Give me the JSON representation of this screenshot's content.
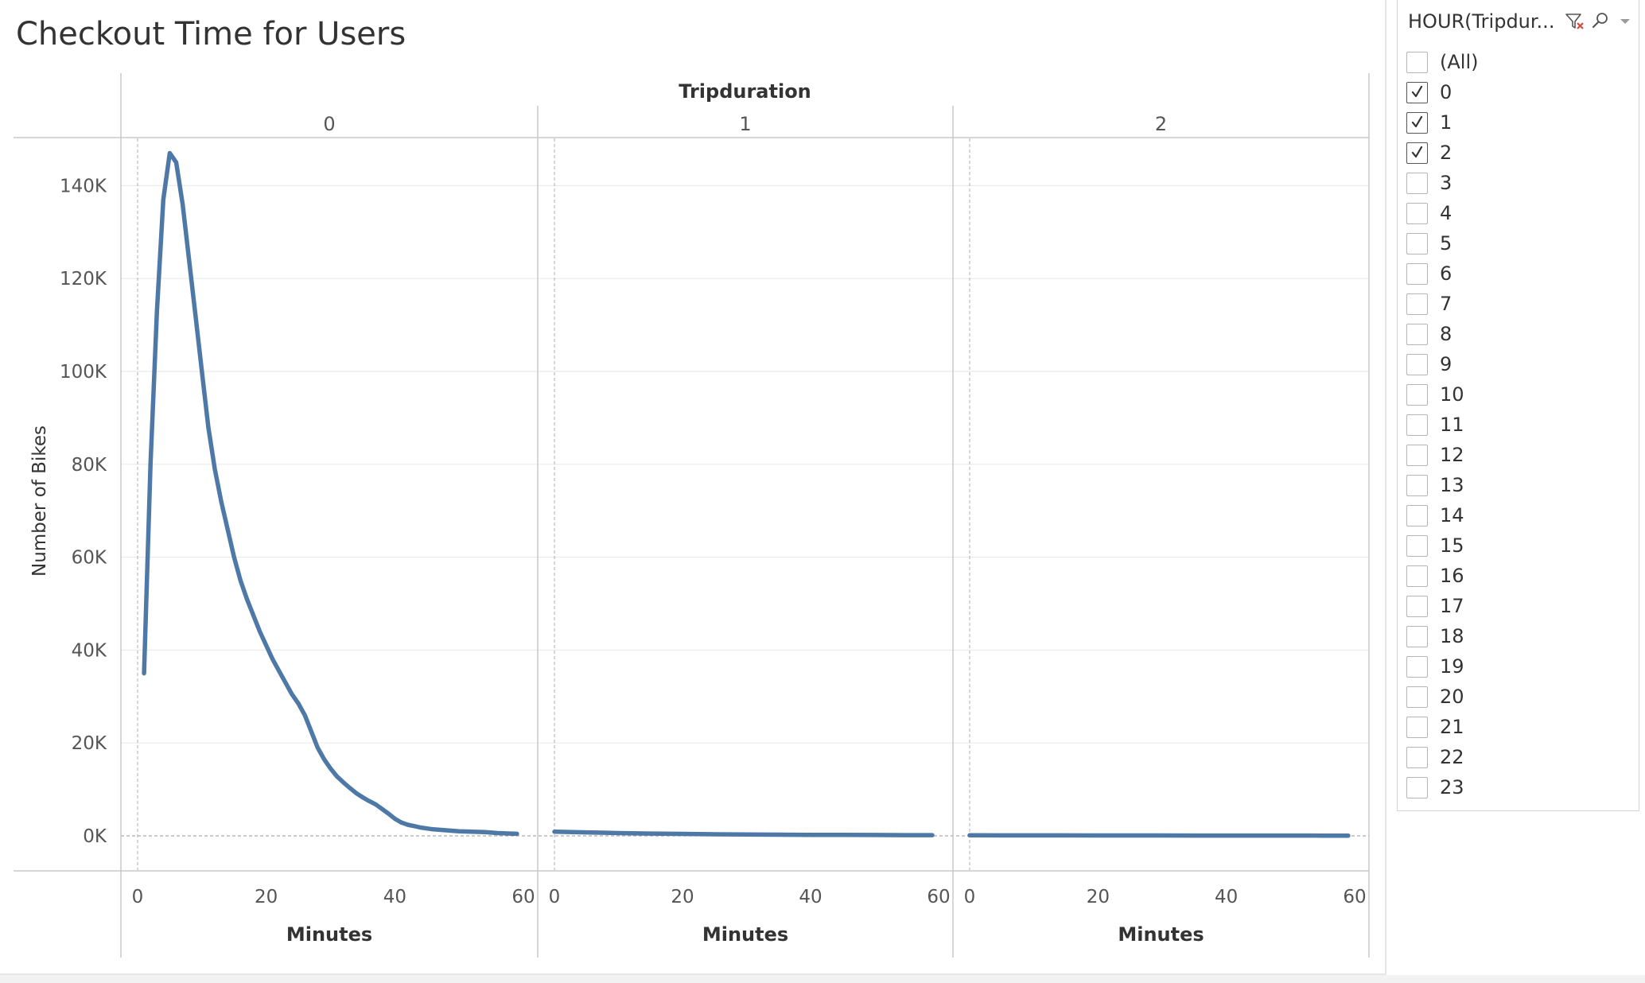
{
  "title": "Checkout Time for Users",
  "filter": {
    "title": "HOUR(Tripdur...",
    "items": [
      {
        "label": "(All)",
        "checked": false
      },
      {
        "label": "0",
        "checked": true
      },
      {
        "label": "1",
        "checked": true
      },
      {
        "label": "2",
        "checked": true
      },
      {
        "label": "3",
        "checked": false
      },
      {
        "label": "4",
        "checked": false
      },
      {
        "label": "5",
        "checked": false
      },
      {
        "label": "6",
        "checked": false
      },
      {
        "label": "7",
        "checked": false
      },
      {
        "label": "8",
        "checked": false
      },
      {
        "label": "9",
        "checked": false
      },
      {
        "label": "10",
        "checked": false
      },
      {
        "label": "11",
        "checked": false
      },
      {
        "label": "12",
        "checked": false
      },
      {
        "label": "13",
        "checked": false
      },
      {
        "label": "14",
        "checked": false
      },
      {
        "label": "15",
        "checked": false
      },
      {
        "label": "16",
        "checked": false
      },
      {
        "label": "17",
        "checked": false
      },
      {
        "label": "18",
        "checked": false
      },
      {
        "label": "19",
        "checked": false
      },
      {
        "label": "20",
        "checked": false
      },
      {
        "label": "21",
        "checked": false
      },
      {
        "label": "22",
        "checked": false
      },
      {
        "label": "23",
        "checked": false
      }
    ]
  },
  "colors": {
    "line": "#4e79a7",
    "text": "#333333",
    "grid": "#ebebeb"
  },
  "icons": [
    "filter-clear-icon",
    "search-icon",
    "dropdown-icon"
  ],
  "chart_data": {
    "type": "line",
    "title": "Checkout Time for Users",
    "column_header": "Tripduration",
    "ylabel": "Number of Bikes",
    "xlabel": "Minutes",
    "ylim": [
      0,
      150000
    ],
    "xlim": [
      0,
      60
    ],
    "yticks": [
      0,
      20000,
      40000,
      60000,
      80000,
      100000,
      120000,
      140000
    ],
    "ytick_labels": [
      "0K",
      "20K",
      "40K",
      "60K",
      "80K",
      "100K",
      "120K",
      "140K"
    ],
    "xticks": [
      0,
      20,
      40,
      60
    ],
    "xtick_labels": [
      "0",
      "20",
      "40",
      "60"
    ],
    "grid": true,
    "panels": [
      {
        "name": "0",
        "x": [
          1,
          2,
          3,
          4,
          5,
          6,
          7,
          8,
          9,
          10,
          11,
          12,
          13,
          14,
          15,
          16,
          17,
          18,
          19,
          20,
          21,
          22,
          23,
          24,
          25,
          26,
          27,
          28,
          29,
          30,
          31,
          32,
          33,
          34,
          35,
          36,
          37,
          38,
          39,
          40,
          41,
          42,
          43,
          44,
          45,
          46,
          47,
          48,
          49,
          50,
          51,
          52,
          53,
          54,
          55,
          56,
          57,
          58,
          59
        ],
        "y": [
          35000,
          80000,
          113000,
          137000,
          147000,
          145000,
          136000,
          124000,
          112000,
          100000,
          88000,
          79000,
          72000,
          66000,
          60000,
          55000,
          51000,
          47500,
          44000,
          41000,
          38000,
          35500,
          33000,
          30500,
          28500,
          26000,
          22500,
          19000,
          16500,
          14500,
          12800,
          11500,
          10300,
          9200,
          8300,
          7500,
          6800,
          5800,
          4800,
          3700,
          2900,
          2400,
          2100,
          1800,
          1600,
          1400,
          1300,
          1200,
          1100,
          1000,
          950,
          900,
          850,
          800,
          700,
          600,
          550,
          500,
          450
        ]
      },
      {
        "name": "1",
        "x": [
          0,
          5,
          10,
          15,
          20,
          25,
          30,
          35,
          40,
          45,
          50,
          55,
          59
        ],
        "y": [
          900,
          750,
          600,
          500,
          420,
          350,
          300,
          250,
          220,
          200,
          180,
          160,
          150
        ]
      },
      {
        "name": "2",
        "x": [
          0,
          5,
          10,
          15,
          20,
          25,
          30,
          35,
          40,
          45,
          50,
          55,
          59
        ],
        "y": [
          120,
          110,
          100,
          95,
          90,
          85,
          80,
          75,
          70,
          65,
          60,
          55,
          50
        ]
      }
    ]
  }
}
